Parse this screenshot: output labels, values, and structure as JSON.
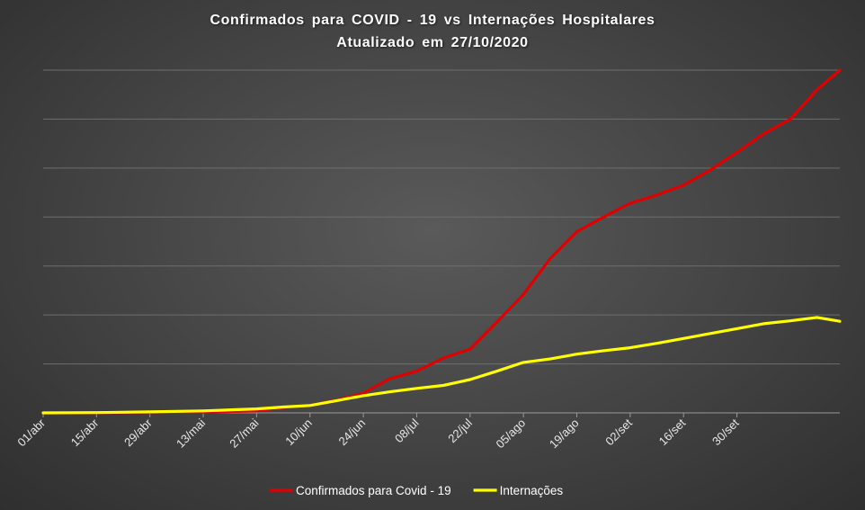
{
  "chart_data": {
    "type": "line",
    "title": "Confirmados para COVID - 19 vs Internações Hospitalares",
    "subtitle": "Atualizado em 27/10/2020",
    "x_start": "01/abr",
    "x_end": "27/out",
    "x_tick_labels": [
      "01/abr",
      "15/abr",
      "29/abr",
      "13/mai",
      "27/mai",
      "10/jun",
      "24/jun",
      "08/jul",
      "22/jul",
      "05/ago",
      "19/ago",
      "02/set",
      "16/set",
      "30/set"
    ],
    "y_axis_labels_visible": false,
    "ylim": [
      0,
      7000
    ],
    "grid": "horizontal",
    "legend_position": "bottom",
    "series": [
      {
        "name": "Confirmados para Covid - 19",
        "color": "#e00000",
        "points": [
          [
            "01/abr",
            0
          ],
          [
            "15/abr",
            2
          ],
          [
            "29/abr",
            5
          ],
          [
            "13/mai",
            15
          ],
          [
            "27/mai",
            40
          ],
          [
            "03/jun",
            110
          ],
          [
            "10/jun",
            150
          ],
          [
            "17/jun",
            260
          ],
          [
            "24/jun",
            400
          ],
          [
            "01/jul",
            700
          ],
          [
            "08/jul",
            850
          ],
          [
            "15/jul",
            1120
          ],
          [
            "22/jul",
            1300
          ],
          [
            "29/jul",
            1850
          ],
          [
            "05/ago",
            2420
          ],
          [
            "12/ago",
            3150
          ],
          [
            "19/ago",
            3700
          ],
          [
            "26/ago",
            4000
          ],
          [
            "02/set",
            4280
          ],
          [
            "09/set",
            4450
          ],
          [
            "16/set",
            4650
          ],
          [
            "23/set",
            4960
          ],
          [
            "30/set",
            5320
          ],
          [
            "07/out",
            5700
          ],
          [
            "14/out",
            6000
          ],
          [
            "21/out",
            6600
          ],
          [
            "27/out",
            7000
          ]
        ]
      },
      {
        "name": "Internações",
        "color": "#ffff00",
        "points": [
          [
            "01/abr",
            0
          ],
          [
            "15/abr",
            5
          ],
          [
            "29/abr",
            20
          ],
          [
            "13/mai",
            40
          ],
          [
            "27/mai",
            80
          ],
          [
            "03/jun",
            120
          ],
          [
            "10/jun",
            150
          ],
          [
            "17/jun",
            250
          ],
          [
            "24/jun",
            350
          ],
          [
            "01/jul",
            430
          ],
          [
            "08/jul",
            500
          ],
          [
            "15/jul",
            560
          ],
          [
            "22/jul",
            680
          ],
          [
            "29/jul",
            850
          ],
          [
            "05/ago",
            1030
          ],
          [
            "12/ago",
            1100
          ],
          [
            "19/ago",
            1200
          ],
          [
            "26/ago",
            1270
          ],
          [
            "02/set",
            1330
          ],
          [
            "09/set",
            1420
          ],
          [
            "16/set",
            1520
          ],
          [
            "23/set",
            1620
          ],
          [
            "30/set",
            1720
          ],
          [
            "07/out",
            1820
          ],
          [
            "14/out",
            1880
          ],
          [
            "21/out",
            1950
          ],
          [
            "27/out",
            1870
          ]
        ]
      }
    ]
  }
}
